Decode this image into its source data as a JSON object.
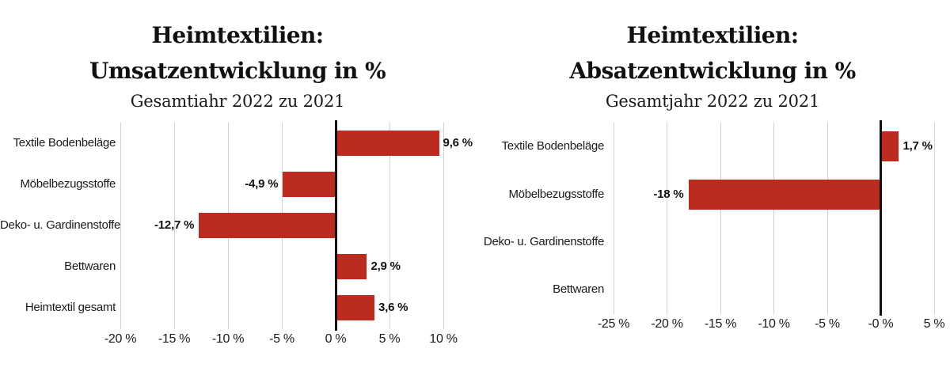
{
  "colors": {
    "bar": "#bc2b1f",
    "grid": "#d0d0d0",
    "axis": "#111111",
    "text": "#1a1a1a"
  },
  "chart_data": [
    {
      "type": "bar",
      "orientation": "horizontal",
      "title": "Heimtextilien: Umsatzentwicklung in %",
      "title_line1": "Heimtextilien:",
      "title_line2": "Umsatzentwicklung in %",
      "subtitle": "Gesamtiahr 2022 zu 2021",
      "categories": [
        "Textile Bodenbeläge",
        "Möbelbezugsstoffe",
        "Deko- u. Gardinenstoffe",
        "Bettwaren",
        "Heimtextil gesamt"
      ],
      "values": [
        9.6,
        -4.9,
        -12.7,
        2.9,
        3.6
      ],
      "value_labels": [
        "9,6 %",
        "-4,9 %",
        "-12,7 %",
        "2,9 %",
        "3,6 %"
      ],
      "xlim": [
        -20,
        10
      ],
      "ticks": [
        -20,
        -15,
        -10,
        -5,
        0,
        5,
        10
      ],
      "tick_labels": [
        "-20 %",
        "-15 %",
        "-10 %",
        "-5 %",
        "0 %",
        "5 %",
        "10 %"
      ],
      "grid": true,
      "legend": false
    },
    {
      "type": "bar",
      "orientation": "horizontal",
      "title": "Heimtextilien: Absatzentwicklung in %",
      "title_line1": "Heimtextilien:",
      "title_line2": "Absatzentwicklung in %",
      "subtitle": "Gesamtjahr 2022 zu 2021",
      "categories": [
        "Textile Bodenbeläge",
        "Möbelbezugsstoffe",
        "Deko- u. Gardinenstoffe",
        "Bettwaren"
      ],
      "values": [
        1.7,
        -18,
        null,
        null
      ],
      "value_labels": [
        "1,7 %",
        "-18 %",
        "",
        ""
      ],
      "xlim": [
        -25,
        5
      ],
      "ticks": [
        -25,
        -20,
        -15,
        -10,
        -5,
        0,
        5
      ],
      "tick_labels": [
        "-25 %",
        "-20 %",
        "-15 %",
        "-10 %",
        "-5 %",
        "-0 %",
        "5 %"
      ],
      "grid": true,
      "legend": false
    }
  ]
}
